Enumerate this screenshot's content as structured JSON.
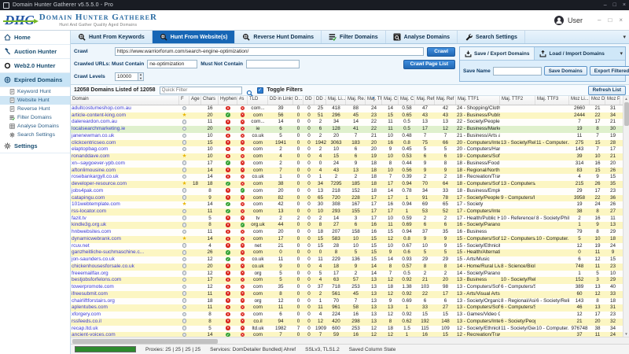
{
  "window": {
    "title": "Domain Hunter Gatherer v5.5.5.0 - Pro",
    "controls": {
      "minimize": "–",
      "maximize": "□",
      "close": "×"
    }
  },
  "header": {
    "logo_abbr": "DHG",
    "logo_name": "Domain Hunter GathereR",
    "logo_tagline": "Hunt And Gather Quality Aged Domains",
    "user_label": "User"
  },
  "tabs": [
    {
      "label": "Hunt From Keywords",
      "icon": "hunt-icon",
      "active": false
    },
    {
      "label": "Hunt From Website(s)",
      "icon": "hunt-icon",
      "active": true
    },
    {
      "label": "Reverse Hunt Domains",
      "icon": "hunt-icon",
      "active": false
    },
    {
      "label": "Filter Domains",
      "icon": "filter-icon",
      "active": false
    },
    {
      "label": "Analyse Domains",
      "icon": "analyse-icon",
      "active": false
    },
    {
      "label": "Search Settings",
      "icon": "wrench-icon",
      "active": false
    }
  ],
  "tabbar_caret": "▾",
  "sidebar": {
    "items": [
      {
        "label": "Home",
        "icon": "home-icon",
        "active": false
      },
      {
        "label": "Auction Hunter",
        "icon": "auction-icon",
        "active": false
      },
      {
        "label": "Web2.0 Hunter",
        "icon": "web20-icon",
        "active": false
      },
      {
        "label": "Expired Domains",
        "icon": "globe-icon",
        "active": true,
        "children": [
          {
            "label": "Keyword Hunt",
            "icon": "page-icon",
            "selected": false
          },
          {
            "label": "Website Hunt",
            "icon": "page-icon",
            "selected": true
          },
          {
            "label": "Reverse Hunt",
            "icon": "page-icon",
            "selected": false
          },
          {
            "label": "Filter Domains",
            "icon": "filter-small-icon",
            "selected": false
          },
          {
            "label": "Analyse Domains",
            "icon": "grid-icon",
            "selected": false
          },
          {
            "label": "Search Settings",
            "icon": "gear-icon",
            "selected": false
          }
        ]
      },
      {
        "label": "Settings",
        "icon": "gear-icon",
        "active": false
      }
    ]
  },
  "crawl": {
    "crawl_label": "Crawl",
    "crawl_url": "https://www.warriorforum.com/search-engine-optimization/",
    "crawl_button": "Crawl",
    "must_contain_label": "Crawled URLs: Must Contain",
    "must_contain_value": "ne-optimization",
    "must_not_contain_label": "Must Not Contain",
    "must_not_contain_value": "",
    "crawl_page_list_button": "Crawl Page List",
    "crawl_levels_label": "Crawl Levels",
    "crawl_levels_value": "10000"
  },
  "save_panel": {
    "save_tab": "Save / Export Domains",
    "load_tab": "Load / Import Domains",
    "caret": "▾",
    "save_name_label": "Save Name",
    "save_name_value": "",
    "save_domains_button": "Save Domains",
    "export_filtered_button": "Export Filtered"
  },
  "filter_bar": {
    "count_text": "12058 Domains Listed of 12058",
    "quick_filter_placeholder": "Quick Filter",
    "toggle_filters_label": "Toggle Filters",
    "refresh_button": "Refresh List"
  },
  "table": {
    "columns": [
      "Domain",
      "F",
      "Age",
      "Chars",
      "Hyphen",
      "#s",
      "TLD",
      "DD in Links",
      "D...",
      "DD ...",
      "DD ...",
      "Maj. Li...",
      "Maj. Re...",
      "Maj. TF",
      "Maj. CF",
      "Maj. C...",
      "Maj. Ref IPs",
      "Maj. Ref Su...",
      "Maj. TTF1",
      "Maj. TTF2",
      "Maj. TTF3",
      "Moz Li...",
      "Moz DA",
      "Moz PA"
    ],
    "sort_column": "Maj. TF",
    "green_row_index": 3,
    "rows": [
      [
        "adultcostumeshop.com.au",
        "gray",
        "",
        "16",
        "red",
        "red",
        "com...",
        "39",
        "0",
        "0",
        "25",
        "418",
        "88",
        "24",
        "14",
        "0.58",
        "47",
        "42",
        "24 - Shopping/Clothi...",
        "",
        "",
        "2660",
        "21",
        "31"
      ],
      [
        "article-content-king.com",
        "star",
        "",
        "20",
        "green",
        "red",
        "com",
        "56",
        "0",
        "0",
        "51",
        "296",
        "45",
        "23",
        "15",
        "0.65",
        "43",
        "43",
        "23 - Business/Publish...",
        "",
        "",
        "2444",
        "22",
        "34"
      ],
      [
        "dalereardon.com.au",
        "gray",
        "",
        "11",
        "red",
        "red",
        "com...",
        "14",
        "0",
        "0",
        "2",
        "34",
        "14",
        "22",
        "11",
        "0.5",
        "13",
        "13",
        "22 - Society/People",
        "",
        "",
        "7",
        "17",
        "21"
      ],
      [
        "localsearchmarketing.ie",
        "gray",
        "",
        "20",
        "red",
        "red",
        "ie",
        "6",
        "0",
        "0",
        "6",
        "128",
        "41",
        "22",
        "11",
        "0.5",
        "17",
        "12",
        "22 - Business/Market...",
        "",
        "",
        "19",
        "8",
        "30"
      ],
      [
        "janenewman.co.uk",
        "gray",
        "",
        "10",
        "red",
        "red",
        "co.uk",
        "5",
        "0",
        "0",
        "2",
        "20",
        "7",
        "21",
        "10",
        "0.48",
        "7",
        "7",
        "21 - Business/Arts an...",
        "",
        "",
        "11",
        "7",
        "19"
      ],
      [
        "clickcentricseo.com",
        "gray",
        "",
        "15",
        "red",
        "red",
        "com",
        "1941",
        "0",
        "0",
        "1942",
        "3063",
        "183",
        "20",
        "16",
        "0.8",
        "75",
        "66",
        "20 - Computers/Inter...",
        "13 - Society/Rel...",
        "11 - Computer...",
        "275",
        "15",
        "28"
      ],
      [
        "elaptopbag.com",
        "gray",
        "",
        "10",
        "red",
        "red",
        "com",
        "2",
        "0",
        "0",
        "2",
        "10",
        "6",
        "20",
        "9",
        "0.45",
        "5",
        "5",
        "20 - Computers/Har...",
        "",
        "",
        "143",
        "7",
        "17"
      ],
      [
        "ronanddave.com",
        "star",
        "",
        "10",
        "red",
        "red",
        "com",
        "4",
        "0",
        "0",
        "4",
        "15",
        "6",
        "19",
        "10",
        "0.53",
        "6",
        "6",
        "19 - Computers/Soft...",
        "",
        "",
        "39",
        "10",
        "21"
      ],
      [
        "xn--saygoever-ypb.com",
        "gray",
        "",
        "17",
        "green",
        "red",
        "com",
        "2",
        "0",
        "0",
        "0",
        "24",
        "9",
        "18",
        "8",
        "0.44",
        "9",
        "8",
        "18 - Business/Food a...",
        "",
        "",
        "314",
        "16",
        "20"
      ],
      [
        "aftonlimousine.com",
        "gray",
        "",
        "14",
        "red",
        "red",
        "com",
        "7",
        "0",
        "0",
        "4",
        "43",
        "13",
        "18",
        "10",
        "0.56",
        "9",
        "9",
        "18 - Regional/North ...",
        "",
        "",
        "83",
        "15",
        "26"
      ],
      [
        "rosebankargyll.co.uk",
        "gray",
        "",
        "14",
        "red",
        "red",
        "co.uk",
        "1",
        "0",
        "0",
        "1",
        "2",
        "2",
        "18",
        "7",
        "0.39",
        "2",
        "2",
        "18 - Recreation/Travel",
        "",
        "",
        "4",
        "9",
        "15"
      ],
      [
        "developer-resource.com",
        "star",
        "18",
        "18",
        "green",
        "red",
        "com",
        "38",
        "0",
        "0",
        "34",
        "7295",
        "185",
        "18",
        "17",
        "0.94",
        "70",
        "64",
        "18 - Computers/Soft...",
        "13 - Computers/...",
        "",
        "215",
        "26",
        "35"
      ],
      [
        "jobs4pak.com",
        "gray",
        "",
        "8",
        "red",
        "green",
        "com",
        "20",
        "0",
        "0",
        "13",
        "218",
        "152",
        "18",
        "14",
        "0.78",
        "34",
        "33",
        "18 - Business/Emplo...",
        "",
        "",
        "29",
        "17",
        "23"
      ],
      [
        "catapingu.com",
        "gray",
        "",
        "9",
        "red",
        "red",
        "com",
        "82",
        "0",
        "0",
        "65",
        "720",
        "228",
        "17",
        "17",
        "1",
        "91",
        "78",
        "17 - Society/People",
        "9 - Computers/I...",
        "",
        "3958",
        "22",
        "36"
      ],
      [
        "101webtemplate.com",
        "star",
        "",
        "14",
        "green",
        "red",
        "com",
        "42",
        "0",
        "0",
        "30",
        "308",
        "167",
        "17",
        "16",
        "0.94",
        "69",
        "65",
        "17 - Society",
        "",
        "",
        "19",
        "24",
        "26"
      ],
      [
        "rss-locator.com",
        "gray",
        "",
        "11",
        "green",
        "red",
        "com",
        "13",
        "0",
        "0",
        "10",
        "293",
        "155",
        "17",
        "17",
        "1",
        "53",
        "52",
        "17 - Computers/Inter...",
        "",
        "",
        "38",
        "8",
        "27"
      ],
      [
        "fazit.tv",
        "gray",
        "",
        "5",
        "red",
        "red",
        "tv",
        "2",
        "2",
        "0",
        "2",
        "14",
        "3",
        "17",
        "10",
        "0.59",
        "2",
        "2",
        "17 - Health/Public H...",
        "10 - Reference/E...",
        "8 - Society/Phil...",
        "2",
        "16",
        "11"
      ],
      [
        "kindle3g.org.uk",
        "gray",
        "",
        "8",
        "red",
        "green",
        "org.uk",
        "44",
        "0",
        "0",
        "8",
        "27",
        "6",
        "16",
        "11",
        "0.69",
        "6",
        "6",
        "16 - Society/Paranor...",
        "",
        "",
        "1",
        "9",
        "13"
      ],
      [
        "hnbwebsites.com",
        "gray",
        "",
        "11",
        "red",
        "red",
        "com",
        "20",
        "0",
        "0",
        "18",
        "207",
        "158",
        "16",
        "15",
        "0.94",
        "37",
        "35",
        "16 - Business",
        "",
        "",
        "79",
        "8",
        "29"
      ],
      [
        "dynamicwebrank.com",
        "star",
        "",
        "14",
        "red",
        "red",
        "com",
        "17",
        "0",
        "0",
        "15",
        "583",
        "10",
        "15",
        "12",
        "0.8",
        "9",
        "9",
        "15 - Computers/Soft...",
        "12 - Computers/...",
        "10 - Computer...",
        "5",
        "10",
        "18"
      ],
      [
        "rcuv.net",
        "gray",
        "",
        "4",
        "red",
        "red",
        "net",
        "21",
        "0",
        "0",
        "15",
        "28",
        "10",
        "15",
        "10",
        "0.67",
        "10",
        "9",
        "15 - Society/Ethnicity",
        "",
        "",
        "12",
        "19",
        "24"
      ],
      [
        "ganzheitliche-suchmaschine.c...",
        "gray",
        "",
        "26",
        "green",
        "red",
        "com",
        "0",
        "0",
        "0",
        "0",
        "8",
        "5",
        "15",
        "9",
        "0.6",
        "5",
        "5",
        "15 - Health/Alternative",
        "",
        "",
        "0",
        "11",
        "9"
      ],
      [
        "jon-saunders.co.uk",
        "gray",
        "",
        "12",
        "green",
        "red",
        "co.uk",
        "11",
        "0",
        "0",
        "11",
        "229",
        "136",
        "15",
        "14",
        "0.93",
        "29",
        "29",
        "15 - Arts/Music",
        "",
        "",
        "6",
        "12",
        "15"
      ],
      [
        "chickenhousesforsale.co.uk",
        "gray",
        "",
        "20",
        "red",
        "red",
        "co.uk",
        "9",
        "0",
        "0",
        "4",
        "18",
        "9",
        "14",
        "8",
        "0.57",
        "8",
        "8",
        "14 - Home/Rural Livi...",
        "8 - Science/Biolo...",
        "",
        "748",
        "11",
        "23"
      ],
      [
        "freeemailfax.org",
        "gray",
        "",
        "12",
        "red",
        "red",
        "org",
        "5",
        "0",
        "0",
        "5",
        "17",
        "2",
        "14",
        "7",
        "0.5",
        "2",
        "2",
        "14 - Society/Paranor...",
        "",
        "",
        "1",
        "5",
        "10"
      ],
      [
        "bestjobsforfelons.com",
        "gray",
        "",
        "17",
        "red",
        "red",
        "com",
        "5",
        "0",
        "0",
        "4",
        "63",
        "57",
        "13",
        "12",
        "0.92",
        "21",
        "20",
        "13 - Business",
        "10 - Society/Reli...",
        "",
        "152",
        "3",
        "29"
      ],
      [
        "towerpromote.com",
        "gray",
        "",
        "12",
        "red",
        "red",
        "com",
        "35",
        "0",
        "0",
        "37",
        "718",
        "253",
        "13",
        "18",
        "1.38",
        "103",
        "98",
        "13 - Computers/Soft...",
        "6 - Computers/S...",
        "",
        "389",
        "13",
        "40"
      ],
      [
        "ifreesubmit.com",
        "gray",
        "",
        "11",
        "red",
        "red",
        "com",
        "8",
        "0",
        "0",
        "2",
        "561",
        "45",
        "13",
        "12",
        "0.92",
        "22",
        "17",
        "13 - Arts/Visual Arts",
        "",
        "",
        "60",
        "12",
        "33"
      ],
      [
        "chairliftforstairs.org",
        "gray",
        "",
        "18",
        "red",
        "red",
        "org",
        "12",
        "0",
        "0",
        "1",
        "70",
        "7",
        "13",
        "9",
        "0.69",
        "6",
        "6",
        "13 - Society/Organiz...",
        "8 - Regional/Asia",
        "6 - Society/Reli...",
        "143",
        "8",
        "18"
      ],
      [
        "aplentubes.com",
        "gray",
        "",
        "11",
        "red",
        "red",
        "com",
        "11",
        "0",
        "0",
        "11",
        "961",
        "58",
        "13",
        "13",
        "1",
        "33",
        "27",
        "13 - Computers/Soft...",
        "6 - Computers/S...",
        "",
        "46",
        "13",
        "31"
      ],
      [
        "xforgery.com",
        "gray",
        "",
        "8",
        "red",
        "red",
        "com",
        "6",
        "0",
        "0",
        "4",
        "224",
        "16",
        "13",
        "12",
        "0.92",
        "15",
        "15",
        "13 - Games/Video G...",
        "",
        "",
        "12",
        "17",
        "23"
      ],
      [
        "rssfeeds.co.il",
        "gray",
        "",
        "8",
        "red",
        "red",
        "co.il",
        "94",
        "0",
        "0",
        "12",
        "420",
        "298",
        "13",
        "8",
        "0.62",
        "192",
        "148",
        "13 - Computers/Inter...",
        "6 - Society/People",
        "",
        "21",
        "20",
        "32"
      ],
      [
        "recap.ltd.uk",
        "gray",
        "",
        "5",
        "red",
        "red",
        "ltd.uk",
        "1982",
        "7",
        "0",
        "1909",
        "600",
        "253",
        "12",
        "18",
        "1.5",
        "115",
        "109",
        "12 - Society/Ethnicity",
        "11 - Society/Gen...",
        "10 - Computer...",
        "976748",
        "38",
        "34"
      ],
      [
        "ancient-voices.com",
        "gray",
        "",
        "14",
        "green",
        "red",
        "com",
        "7",
        "0",
        "0",
        "7",
        "59",
        "16",
        "12",
        "12",
        "1",
        "16",
        "15",
        "12 - Recreation/Travel",
        "",
        "",
        "37",
        "11",
        "24"
      ]
    ]
  },
  "status_bar": {
    "proxies": "Proxies: 25 | 25 | 25 | 25",
    "services": "Services: DomDetailer Bundled| Ahref",
    "ssl": "SSLv3, TLS1.2",
    "column_state": "Saved Column State"
  },
  "colors": {
    "accent_blue": "#1766b5",
    "row_yellow": "#fcf6c3",
    "row_green": "#dff0cc",
    "link_blue": "#3b3bd6",
    "bad_red": "#d9251d",
    "good_green": "#36a336"
  }
}
